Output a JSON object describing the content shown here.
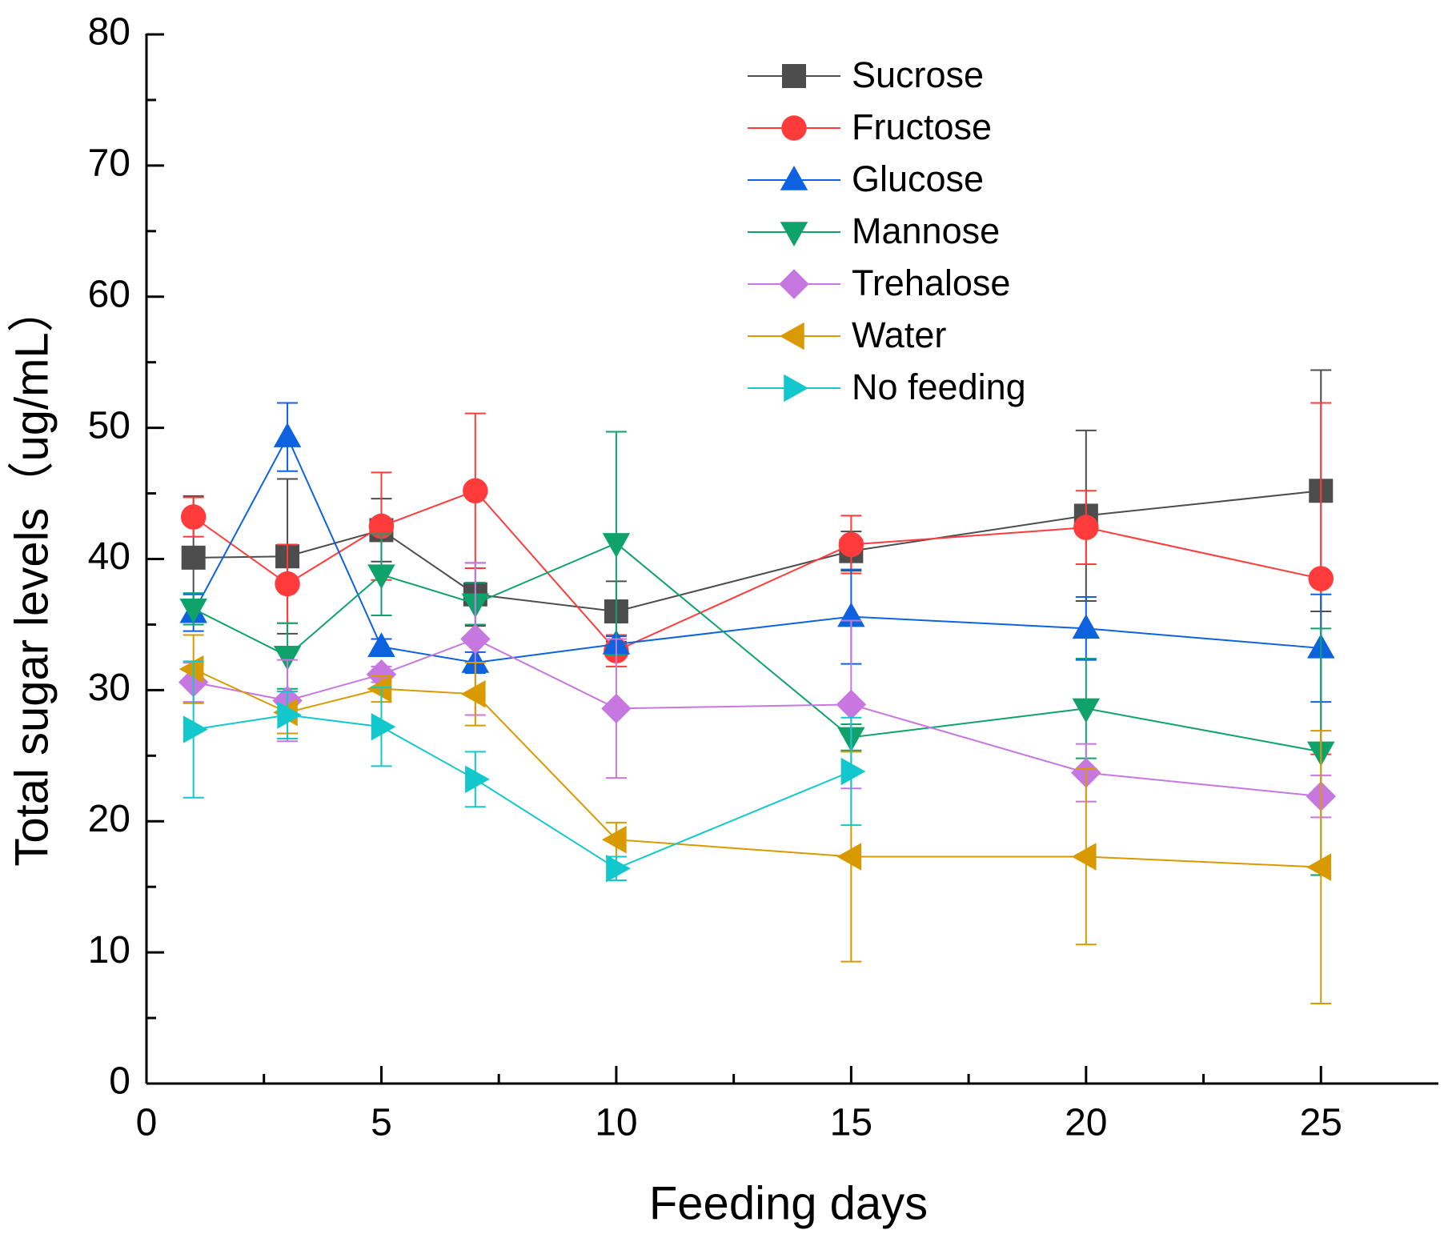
{
  "chart_data": {
    "type": "line",
    "x_label": "Feeding days",
    "y_label": "Total sugar levels（ug/mL）",
    "x": [
      1,
      3,
      5,
      7,
      10,
      15,
      20,
      25
    ],
    "xlim": [
      0,
      27.5
    ],
    "xticks": [
      0,
      5,
      10,
      15,
      20,
      25
    ],
    "ylim": [
      0,
      80
    ],
    "yticks": [
      0,
      10,
      20,
      30,
      40,
      50,
      60,
      70,
      80
    ],
    "legend": "top-right",
    "series": [
      {
        "name": "Sucrose",
        "color": "#4d4d4d",
        "marker": "square",
        "values": [
          40.1,
          40.2,
          42.2,
          37.3,
          36.0,
          40.6,
          43.3,
          45.2
        ],
        "errors": [
          4.7,
          5.9,
          2.4,
          2.4,
          2.3,
          1.5,
          6.5,
          9.2
        ]
      },
      {
        "name": "Fructose",
        "color": "#ff3b3b",
        "marker": "circle",
        "values": [
          43.2,
          38.1,
          42.5,
          45.2,
          33.0,
          41.1,
          42.4,
          38.5
        ],
        "errors": [
          1.5,
          3.0,
          4.1,
          5.9,
          1.2,
          2.2,
          2.8,
          13.4
        ]
      },
      {
        "name": "Glucose",
        "color": "#0d62e0",
        "marker": "triangle-up",
        "values": [
          35.9,
          49.3,
          33.3,
          32.1,
          33.5,
          35.6,
          34.7,
          33.2
        ],
        "errors": [
          1.4,
          2.6,
          0.6,
          0.8,
          0.6,
          3.6,
          2.4,
          4.1
        ]
      },
      {
        "name": "Mannose",
        "color": "#0fa36b",
        "marker": "triangle-down",
        "values": [
          36.2,
          32.6,
          38.8,
          36.6,
          41.2,
          26.4,
          28.6,
          25.3
        ],
        "errors": [
          1.2,
          2.5,
          3.1,
          1.6,
          8.5,
          1.0,
          3.8,
          9.4
        ]
      },
      {
        "name": "Trehalose",
        "color": "#c678e0",
        "marker": "diamond",
        "values": [
          30.6,
          29.2,
          31.2,
          33.9,
          28.6,
          28.9,
          23.7,
          21.9
        ],
        "errors": [
          1.5,
          3.1,
          0.6,
          5.8,
          5.3,
          6.4,
          2.2,
          1.6
        ]
      },
      {
        "name": "Water",
        "color": "#d99a00",
        "marker": "triangle-left",
        "values": [
          31.6,
          28.3,
          30.1,
          29.7,
          18.6,
          17.3,
          17.3,
          16.5
        ],
        "errors": [
          2.6,
          1.6,
          1.0,
          2.4,
          1.3,
          8.0,
          6.7,
          10.4
        ]
      },
      {
        "name": "No feeding",
        "color": "#12c8cc",
        "marker": "triangle-right",
        "values": [
          27.0,
          28.1,
          27.2,
          23.2,
          16.4,
          23.8,
          null,
          null
        ],
        "errors": [
          5.2,
          1.8,
          3.0,
          2.1,
          0.9,
          4.1,
          null,
          null
        ]
      }
    ]
  }
}
